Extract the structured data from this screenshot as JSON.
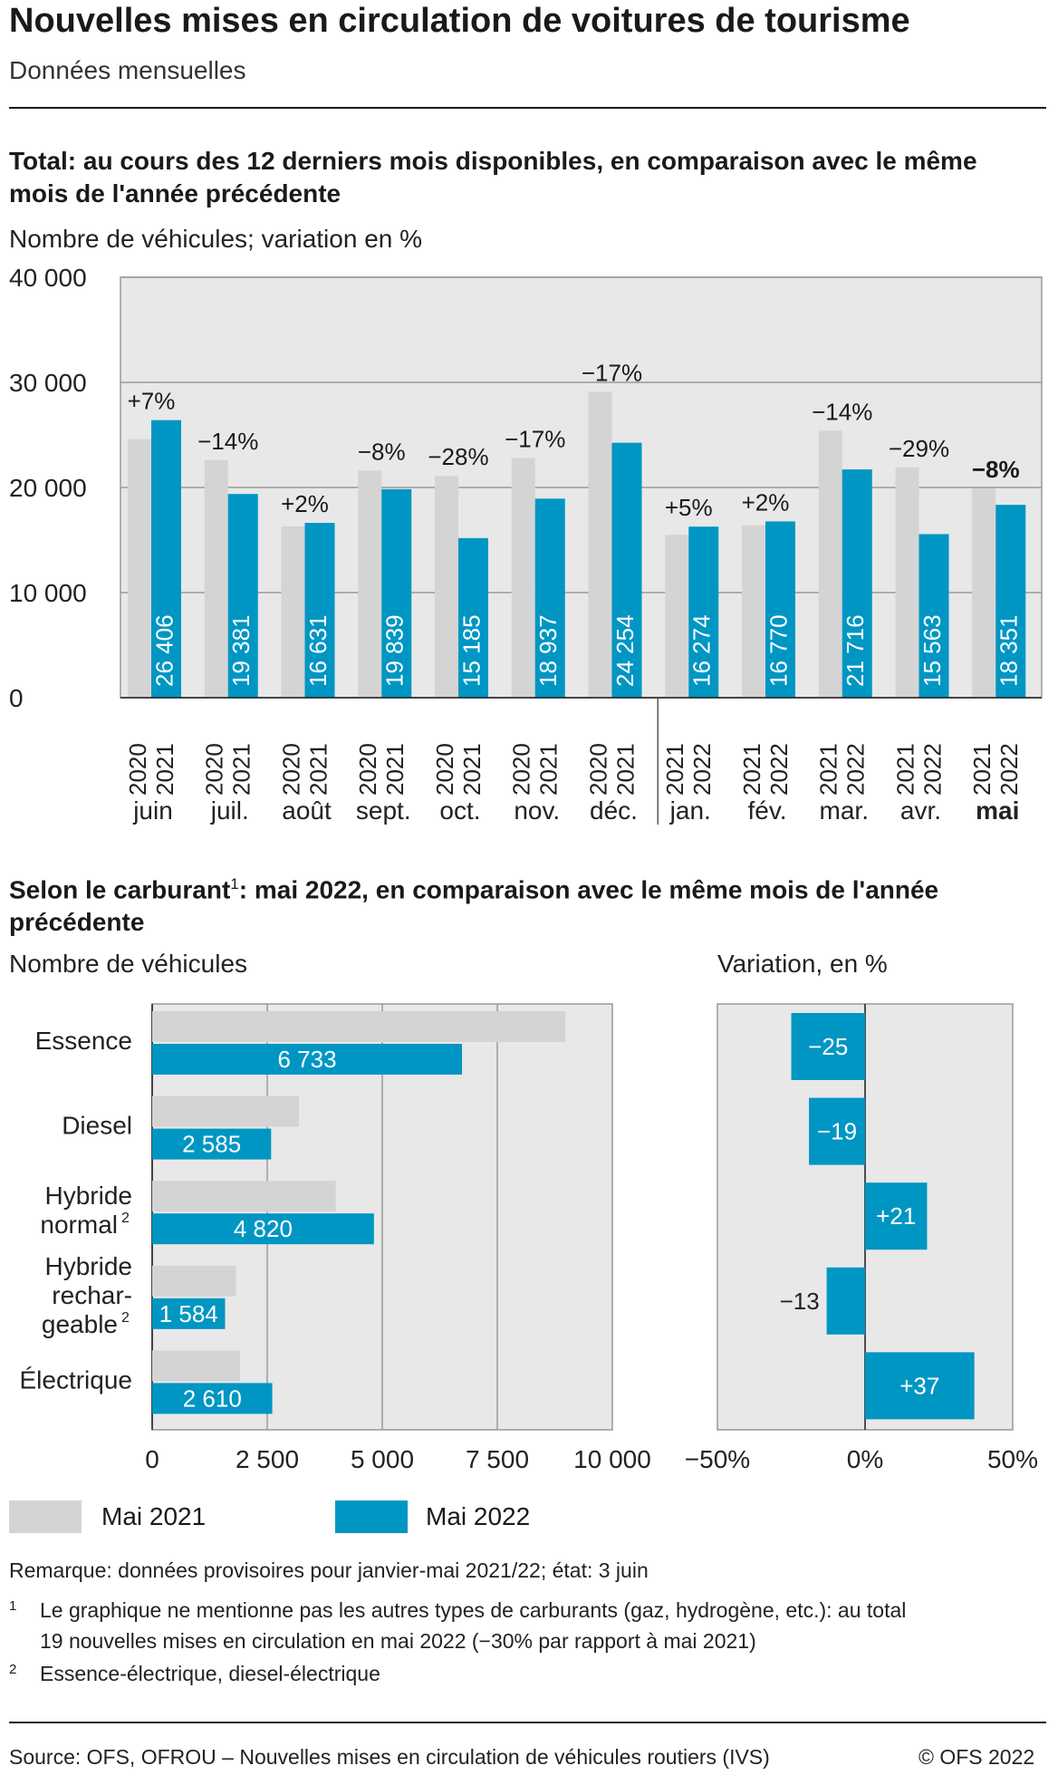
{
  "header": {
    "title": "Nouvelles mises en circulation de voitures de tourisme",
    "subtitle": "Données mensuelles"
  },
  "section1": {
    "title": "Total: au cours des 12 derniers mois disponibles, en comparaison avec le même mois de l'année précédente",
    "unit": "Nombre de véhicules; variation en %"
  },
  "section2": {
    "title_part1": "Selon le carburant",
    "title_sup": "1",
    "title_part2": ": mai 2022, en comparaison avec le même mois de l'année précédente",
    "unit_left": "Nombre de véhicules",
    "unit_right": "Variation, en %"
  },
  "colors": {
    "prev": "#d4d4d4",
    "curr": "#0096c3",
    "panel": "#e8e8e8",
    "grid": "#999999"
  },
  "chart_data": [
    {
      "type": "bar",
      "ylim": [
        0,
        40000
      ],
      "yticks": [
        "0",
        "10 000",
        "20 000",
        "30 000",
        "40 000"
      ],
      "yticks_values": [
        0,
        10000,
        20000,
        30000,
        40000
      ],
      "categories": [
        "juin",
        "juil.",
        "août",
        "sept.",
        "oct.",
        "nov.",
        "déc.",
        "jan.",
        "fév.",
        "mar.",
        "avr.",
        "mai"
      ],
      "year_labels": [
        [
          "2020",
          "2021"
        ],
        [
          "2020",
          "2021"
        ],
        [
          "2020",
          "2021"
        ],
        [
          "2020",
          "2021"
        ],
        [
          "2020",
          "2021"
        ],
        [
          "2020",
          "2021"
        ],
        [
          "2020",
          "2021"
        ],
        [
          "2021",
          "2022"
        ],
        [
          "2021",
          "2022"
        ],
        [
          "2021",
          "2022"
        ],
        [
          "2021",
          "2022"
        ],
        [
          "2021",
          "2022"
        ]
      ],
      "series": [
        {
          "values": [
            24600,
            22600,
            16300,
            21600,
            21100,
            22800,
            29100,
            15500,
            16400,
            25400,
            21900,
            19900
          ]
        },
        {
          "values": [
            26406,
            19381,
            16631,
            19839,
            15185,
            18937,
            24254,
            16274,
            16770,
            21716,
            15563,
            18351
          ]
        }
      ],
      "value_labels": [
        "26 406",
        "19 381",
        "16 631",
        "19 839",
        "15 185",
        "18 937",
        "24 254",
        "16 274",
        "16 770",
        "21 716",
        "15 563",
        "18 351"
      ],
      "change_labels": [
        "+7%",
        "−14%",
        "+2%",
        "−8%",
        "−28%",
        "−17%",
        "−17%",
        "+5%",
        "+2%",
        "−14%",
        "−29%",
        "−8%"
      ],
      "highlight_index": 11,
      "grid": true
    },
    {
      "type": "bar",
      "orientation": "horizontal",
      "categories": [
        [
          "Essence"
        ],
        [
          "Diesel"
        ],
        [
          "Hybride",
          "normal"
        ],
        [
          "Hybride",
          "rechar-",
          "geable"
        ],
        [
          "Électrique"
        ]
      ],
      "category_sup": [
        "",
        "",
        "2",
        "2",
        ""
      ],
      "xlim": [
        0,
        10000
      ],
      "xticks": [
        "0",
        "2 500",
        "5 000",
        "7 500",
        "10 000"
      ],
      "xticks_values": [
        0,
        2500,
        5000,
        7500,
        10000
      ],
      "series": [
        {
          "name": "Mai 2021",
          "values": [
            8980,
            3190,
            3990,
            1820,
            1910
          ]
        },
        {
          "name": "Mai 2022",
          "values": [
            6733,
            2585,
            4820,
            1584,
            2610
          ]
        }
      ],
      "value_labels": [
        "6 733",
        "2 585",
        "4 820",
        "1 584",
        "2 610"
      ],
      "grid": true
    },
    {
      "type": "bar",
      "orientation": "horizontal",
      "xlim": [
        -50,
        50
      ],
      "xticks": [
        "−50%",
        "0%",
        "50%"
      ],
      "xticks_values": [
        -50,
        0,
        50
      ],
      "values": [
        -25,
        -19,
        21,
        -13,
        37
      ],
      "value_labels": [
        "−25",
        "−19",
        "+21",
        "−13",
        "+37"
      ]
    }
  ],
  "legend": {
    "prev": "Mai 2021",
    "curr": "Mai 2022"
  },
  "notes": {
    "remark": "Remarque: données provisoires pour  janvier-mai 2021/22; état: 3 juin",
    "fn1_num": "1",
    "fn1_line1": "Le graphique ne mentionne pas les autres types de carburants (gaz, hydrogène, etc.): au total",
    "fn1_line2": "19 nouvelles mises en circulation en mai 2022 (−30% par rapport à mai 2021)",
    "fn2_num": "2",
    "fn2_line1": "Essence-électrique, diesel-électrique"
  },
  "footer": {
    "source": "Source: OFS, OFROU – Nouvelles mises en circulation de véhicules routiers (IVS)",
    "copyright": "© OFS 2022"
  }
}
